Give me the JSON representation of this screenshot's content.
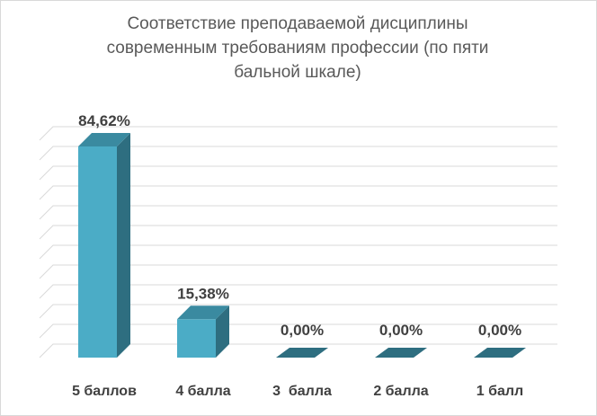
{
  "chart_data": {
    "type": "bar",
    "title": "Соответствие преподаваемой дисциплины современным требованиям профессии (по пяти бальной шкале)",
    "categories": [
      "5 баллов",
      "4 балла",
      "3  балла",
      "2 балла",
      "1 балл"
    ],
    "values": [
      84.62,
      15.38,
      0,
      0,
      0
    ],
    "data_labels": [
      "84,62%",
      "15,38%",
      "0,00%",
      "0,00%",
      "0,00%"
    ],
    "ylim": [
      0,
      90
    ],
    "grid": true,
    "legend": "none",
    "colors": {
      "bar_front": "#4bacc6",
      "bar_side": "#2e6e80",
      "bar_top": "#3a8aa0",
      "grid": "#d9d9d9"
    }
  }
}
